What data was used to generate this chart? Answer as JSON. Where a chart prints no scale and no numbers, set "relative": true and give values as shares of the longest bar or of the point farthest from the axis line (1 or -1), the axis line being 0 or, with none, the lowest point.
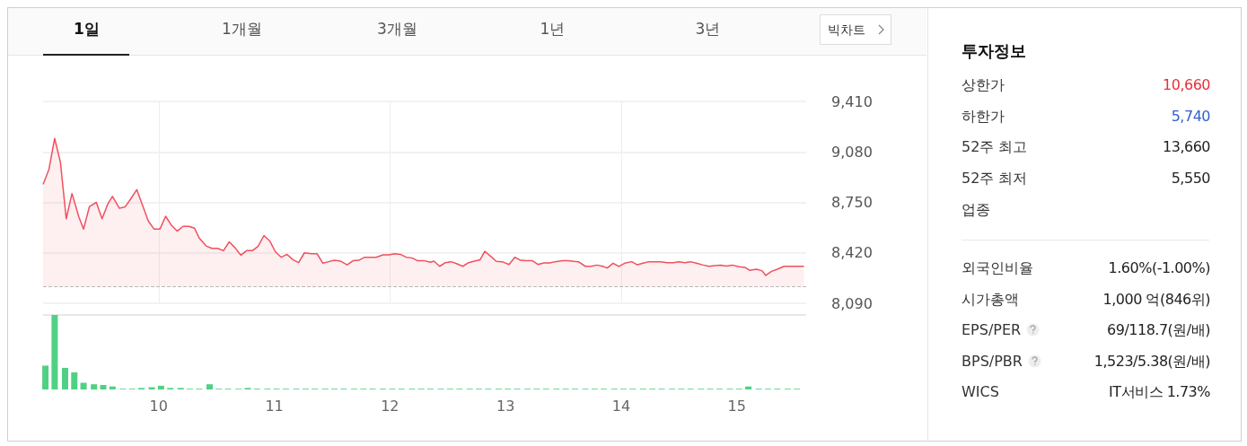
{
  "chart_data": [
    {
      "type": "area",
      "annotations": [
        "1일",
        "1개월",
        "3개월",
        "1년",
        "3년",
        "빅차트"
      ],
      "xlim": [
        9,
        15.6
      ],
      "xticks": [
        10,
        12,
        14
      ],
      "ylim": [
        8090,
        9410
      ],
      "yticks": [
        {
          "value": 8090,
          "label": "8,090"
        },
        {
          "value": 8420,
          "label": "8,420"
        },
        {
          "value": 8750,
          "label": "8,750"
        },
        {
          "value": 9080,
          "label": "9,080"
        },
        {
          "value": 9410,
          "label": "9,410"
        }
      ],
      "tick_labels": "y",
      "grid": true,
      "marker": "none",
      "ref_lines": [
        {
          "axis": "y",
          "value": 8200,
          "color": "#bbbbbb",
          "line_style": "dashed"
        }
      ],
      "series": [
        {
          "color": "#f0505e",
          "x": [
            9.0,
            9.05,
            9.1,
            9.15,
            9.2,
            9.25,
            9.31,
            9.35,
            9.4,
            9.46,
            9.51,
            9.56,
            9.6,
            9.66,
            9.71,
            9.76,
            9.81,
            9.86,
            9.91,
            9.96,
            10.01,
            10.06,
            10.11,
            10.16,
            10.21,
            10.26,
            10.31,
            10.35,
            10.41,
            10.46,
            10.51,
            10.56,
            10.61,
            10.66,
            10.71,
            10.76,
            10.81,
            10.86,
            10.91,
            10.96,
            11.01,
            11.06,
            11.11,
            11.16,
            11.21,
            11.26,
            11.32,
            11.37,
            11.42,
            11.47,
            11.52,
            11.57,
            11.63,
            11.68,
            11.73,
            11.78,
            11.83,
            11.88,
            11.94,
            11.99,
            12.04,
            12.09,
            12.14,
            12.19,
            12.24,
            12.3,
            12.35,
            12.38,
            12.43,
            12.48,
            12.53,
            12.58,
            12.63,
            12.68,
            12.73,
            12.78,
            12.82,
            12.88,
            12.92,
            12.97,
            13.03,
            13.08,
            13.13,
            13.18,
            13.23,
            13.28,
            13.33,
            13.38,
            13.43,
            13.49,
            13.54,
            13.59,
            13.63,
            13.69,
            13.74,
            13.79,
            13.84,
            13.88,
            13.93,
            13.98,
            14.03,
            14.09,
            14.14,
            14.19,
            14.24,
            14.29,
            14.34,
            14.4,
            14.45,
            14.5,
            14.55,
            14.6,
            14.65,
            14.71,
            14.76,
            14.81,
            14.86,
            14.91,
            14.96,
            15.02,
            15.07,
            15.11,
            15.17,
            15.22,
            15.25,
            15.3,
            15.35,
            15.41,
            15.46,
            15.58
          ],
          "values": [
            8867,
            8964,
            9168,
            9012,
            8643,
            8808,
            8653,
            8575,
            8721,
            8750,
            8643,
            8740,
            8789,
            8711,
            8721,
            8775,
            8833,
            8731,
            8628,
            8575,
            8575,
            8659,
            8600,
            8562,
            8593,
            8593,
            8581,
            8517,
            8465,
            8449,
            8449,
            8434,
            8492,
            8453,
            8405,
            8434,
            8434,
            8463,
            8533,
            8498,
            8426,
            8391,
            8410,
            8375,
            8356,
            8420,
            8414,
            8414,
            8352,
            8362,
            8371,
            8366,
            8342,
            8368,
            8371,
            8391,
            8391,
            8391,
            8407,
            8407,
            8414,
            8410,
            8391,
            8387,
            8368,
            8368,
            8358,
            8366,
            8332,
            8356,
            8362,
            8348,
            8332,
            8356,
            8366,
            8375,
            8430,
            8391,
            8364,
            8362,
            8344,
            8391,
            8371,
            8369,
            8369,
            8344,
            8354,
            8354,
            8362,
            8368,
            8368,
            8364,
            8362,
            8332,
            8332,
            8340,
            8332,
            8321,
            8352,
            8331,
            8352,
            8362,
            8342,
            8352,
            8362,
            8362,
            8362,
            8356,
            8356,
            8362,
            8356,
            8362,
            8352,
            8340,
            8332,
            8336,
            8340,
            8334,
            8340,
            8329,
            8325,
            8306,
            8313,
            8302,
            8272,
            8299,
            8313,
            8332,
            8332,
            8332
          ]
        }
      ]
    },
    {
      "type": "bar",
      "relative": true,
      "xlim": [
        9,
        15.6
      ],
      "xticks": [
        10,
        11,
        12,
        13,
        14,
        15
      ],
      "grid": false,
      "series": [
        {
          "color": "#4fd184",
          "x": [
            9.02,
            9.1,
            9.19,
            9.27,
            9.35,
            9.44,
            9.52,
            9.6,
            9.69,
            9.77,
            9.85,
            9.94,
            10.02,
            10.1,
            10.19,
            10.27,
            10.35,
            10.44,
            10.52,
            10.6,
            10.69,
            10.77,
            10.85,
            10.94,
            11.02,
            11.1,
            11.19,
            11.27,
            11.35,
            11.44,
            11.52,
            11.6,
            11.69,
            11.77,
            11.85,
            11.94,
            12.02,
            12.1,
            12.19,
            12.27,
            12.35,
            12.44,
            12.52,
            12.6,
            12.69,
            12.77,
            12.85,
            12.94,
            13.02,
            13.1,
            13.19,
            13.27,
            13.35,
            13.44,
            13.52,
            13.6,
            13.69,
            13.77,
            13.85,
            13.94,
            14.02,
            14.1,
            14.19,
            14.27,
            14.35,
            14.44,
            14.52,
            14.6,
            14.69,
            14.77,
            14.85,
            14.94,
            15.02,
            15.1,
            15.19,
            15.27,
            15.35,
            15.44,
            15.52
          ],
          "values": [
            0.32,
            1,
            0.29,
            0.23,
            0.09,
            0.07,
            0.06,
            0.04,
            0.01,
            0.01,
            0.02,
            0.03,
            0.05,
            0.02,
            0.02,
            0.01,
            0.01,
            0.07,
            0.01,
            0.01,
            0.01,
            0.02,
            0.01,
            0.01,
            0.01,
            0.01,
            0.01,
            0.01,
            0.01,
            0.01,
            0.01,
            0.01,
            0.01,
            0.01,
            0.01,
            0.01,
            0.01,
            0.01,
            0.01,
            0.01,
            0.01,
            0.01,
            0.01,
            0.01,
            0.01,
            0.01,
            0.01,
            0.01,
            0.01,
            0.01,
            0.01,
            0.01,
            0.01,
            0.01,
            0.01,
            0.01,
            0.01,
            0.01,
            0.01,
            0.01,
            0.01,
            0.01,
            0.01,
            0.01,
            0.01,
            0.01,
            0.01,
            0.01,
            0.01,
            0.01,
            0.01,
            0.01,
            0.01,
            0.04,
            0.01,
            0.01,
            0.01,
            0.01,
            0.01
          ]
        }
      ]
    },
    {
      "type": "other",
      "title": "투자정보",
      "categories": [
        "상한가",
        "하한가",
        "52주 최고",
        "52주 최저",
        "업종",
        "외국인비율",
        "시가총액",
        "EPS/PER",
        "BPS/PBR",
        "WICS"
      ],
      "value_labels": [
        "10,660",
        "5,740",
        "13,660",
        "5,550",
        null,
        "1.60%(-1.00%)",
        "1,000 억(846위)",
        "69/118.7(원/배)",
        "1,523/5.38(원/배)",
        "IT서비스 1.73%"
      ],
      "colors": [
        "#e5303a",
        "#2f5fd0",
        "#222222",
        "#222222",
        null,
        "#222222",
        "#222222",
        "#222222",
        "#222222",
        "#222222"
      ]
    }
  ]
}
